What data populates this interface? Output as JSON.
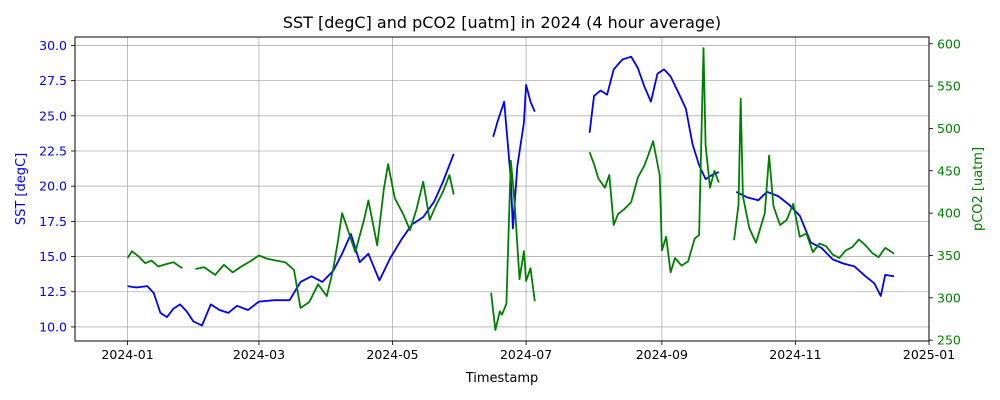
{
  "chart_data": {
    "type": "line",
    "title": "SST [degC] and pCO2 [uatm] in 2024 (4 hour average)",
    "xlabel": "Timestamp",
    "ylabel_left": "SST [degC]",
    "ylabel_right": "pCO2 [uatm]",
    "xlim": [
      "2023-12-08",
      "2025-01-01"
    ],
    "ylim_left": [
      9.0,
      30.6
    ],
    "ylim_right": [
      249,
      608
    ],
    "x_ticks": [
      "2024-01",
      "2024-03",
      "2024-05",
      "2024-07",
      "2024-09",
      "2024-11",
      "2025-01"
    ],
    "y_ticks_left": [
      "10.0",
      "12.5",
      "15.0",
      "17.5",
      "20.0",
      "22.5",
      "25.0",
      "27.5",
      "30.0"
    ],
    "y_ticks_right": [
      "250",
      "300",
      "350",
      "400",
      "450",
      "500",
      "550",
      "600"
    ],
    "grid": true,
    "colors": {
      "sst": "#0000ff",
      "pco2": "#008000",
      "left_axis": "#0000ff",
      "right_axis": "#008000"
    },
    "series": [
      {
        "key": "sst",
        "axis": "left",
        "segments": [
          [
            [
              "2024-01-01",
              12.9
            ],
            [
              "2024-01-05",
              12.8
            ],
            [
              "2024-01-10",
              12.9
            ],
            [
              "2024-01-13",
              12.4
            ],
            [
              "2024-01-16",
              11.0
            ],
            [
              "2024-01-19",
              10.7
            ],
            [
              "2024-01-22",
              11.3
            ],
            [
              "2024-01-25",
              11.6
            ],
            [
              "2024-01-28",
              11.1
            ],
            [
              "2024-01-31",
              10.4
            ],
            [
              "2024-02-04",
              10.1
            ],
            [
              "2024-02-08",
              11.6
            ],
            [
              "2024-02-12",
              11.2
            ],
            [
              "2024-02-16",
              11.0
            ],
            [
              "2024-02-20",
              11.5
            ],
            [
              "2024-02-25",
              11.2
            ],
            [
              "2024-03-01",
              11.8
            ],
            [
              "2024-03-08",
              11.9
            ],
            [
              "2024-03-15",
              11.9
            ],
            [
              "2024-03-20",
              13.2
            ],
            [
              "2024-03-25",
              13.6
            ],
            [
              "2024-03-30",
              13.2
            ],
            [
              "2024-04-04",
              14.0
            ],
            [
              "2024-04-08",
              15.2
            ],
            [
              "2024-04-12",
              16.6
            ],
            [
              "2024-04-16",
              14.6
            ],
            [
              "2024-04-20",
              15.2
            ],
            [
              "2024-04-25",
              13.3
            ],
            [
              "2024-04-30",
              14.9
            ],
            [
              "2024-05-05",
              16.2
            ],
            [
              "2024-05-10",
              17.3
            ],
            [
              "2024-05-15",
              17.8
            ],
            [
              "2024-05-20",
              18.9
            ],
            [
              "2024-05-24",
              20.3
            ],
            [
              "2024-05-27",
              21.5
            ],
            [
              "2024-05-29",
              22.3
            ]
          ],
          [
            [
              "2024-06-16",
              23.5
            ],
            [
              "2024-06-18",
              24.6
            ],
            [
              "2024-06-21",
              26.0
            ],
            [
              "2024-06-24",
              20.5
            ],
            [
              "2024-06-25",
              17.0
            ],
            [
              "2024-06-27",
              21.4
            ],
            [
              "2024-06-30",
              24.5
            ],
            [
              "2024-07-01",
              27.2
            ],
            [
              "2024-07-03",
              26.0
            ],
            [
              "2024-07-05",
              25.3
            ]
          ],
          [
            [
              "2024-07-30",
              23.8
            ],
            [
              "2024-08-01",
              26.4
            ],
            [
              "2024-08-04",
              26.8
            ],
            [
              "2024-08-07",
              26.5
            ],
            [
              "2024-08-10",
              28.3
            ],
            [
              "2024-08-14",
              29.0
            ],
            [
              "2024-08-18",
              29.2
            ],
            [
              "2024-08-21",
              28.4
            ],
            [
              "2024-08-24",
              27.1
            ],
            [
              "2024-08-27",
              26.0
            ],
            [
              "2024-08-30",
              28.0
            ],
            [
              "2024-09-02",
              28.3
            ],
            [
              "2024-09-05",
              27.8
            ],
            [
              "2024-09-09",
              26.5
            ],
            [
              "2024-09-12",
              25.5
            ],
            [
              "2024-09-15",
              23.0
            ],
            [
              "2024-09-18",
              21.5
            ],
            [
              "2024-09-21",
              20.5
            ],
            [
              "2024-09-24",
              20.8
            ],
            [
              "2024-09-27",
              21.0
            ]
          ],
          [
            [
              "2024-10-05",
              19.6
            ],
            [
              "2024-10-10",
              19.2
            ],
            [
              "2024-10-15",
              19.0
            ],
            [
              "2024-10-19",
              19.6
            ],
            [
              "2024-10-24",
              19.3
            ],
            [
              "2024-10-29",
              18.7
            ],
            [
              "2024-11-03",
              17.9
            ],
            [
              "2024-11-08",
              16.0
            ],
            [
              "2024-11-13",
              15.6
            ],
            [
              "2024-11-18",
              14.8
            ],
            [
              "2024-11-23",
              14.5
            ],
            [
              "2024-11-28",
              14.3
            ],
            [
              "2024-12-03",
              13.6
            ],
            [
              "2024-12-07",
              13.1
            ],
            [
              "2024-12-10",
              12.2
            ],
            [
              "2024-12-12",
              13.7
            ],
            [
              "2024-12-16",
              13.6
            ]
          ]
        ]
      },
      {
        "key": "pco2",
        "axis": "right",
        "segments": [
          [
            [
              "2024-01-01",
              347
            ],
            [
              "2024-01-03",
              355
            ],
            [
              "2024-01-06",
              349
            ],
            [
              "2024-01-09",
              341
            ],
            [
              "2024-01-12",
              344
            ],
            [
              "2024-01-15",
              337
            ],
            [
              "2024-01-19",
              340
            ],
            [
              "2024-01-22",
              342
            ],
            [
              "2024-01-26",
              335
            ]
          ],
          [
            [
              "2024-02-01",
              334
            ],
            [
              "2024-02-05",
              336
            ],
            [
              "2024-02-10",
              327
            ],
            [
              "2024-02-14",
              339
            ],
            [
              "2024-02-18",
              330
            ],
            [
              "2024-02-22",
              337
            ],
            [
              "2024-02-26",
              343
            ],
            [
              "2024-03-01",
              350
            ],
            [
              "2024-03-05",
              346
            ],
            [
              "2024-03-09",
              344
            ],
            [
              "2024-03-13",
              342
            ],
            [
              "2024-03-17",
              333
            ],
            [
              "2024-03-20",
              288
            ],
            [
              "2024-03-24",
              295
            ],
            [
              "2024-03-28",
              316
            ],
            [
              "2024-04-01",
              302
            ],
            [
              "2024-04-04",
              335
            ],
            [
              "2024-04-06",
              366
            ],
            [
              "2024-04-08",
              400
            ],
            [
              "2024-04-10",
              385
            ],
            [
              "2024-04-14",
              354
            ],
            [
              "2024-04-18",
              392
            ],
            [
              "2024-04-20",
              415
            ],
            [
              "2024-04-24",
              362
            ],
            [
              "2024-04-27",
              428
            ],
            [
              "2024-04-29",
              458
            ],
            [
              "2024-05-02",
              418
            ],
            [
              "2024-05-06",
              398
            ],
            [
              "2024-05-09",
              380
            ],
            [
              "2024-05-12",
              405
            ],
            [
              "2024-05-15",
              437
            ],
            [
              "2024-05-18",
              392
            ],
            [
              "2024-05-21",
              410
            ],
            [
              "2024-05-24",
              425
            ],
            [
              "2024-05-27",
              445
            ],
            [
              "2024-05-29",
              422
            ]
          ],
          [
            [
              "2024-06-15",
              306
            ],
            [
              "2024-06-16",
              284
            ],
            [
              "2024-06-17",
              262
            ],
            [
              "2024-06-19",
              284
            ],
            [
              "2024-06-20",
              280
            ],
            [
              "2024-06-22",
              293
            ],
            [
              "2024-06-24",
              462
            ],
            [
              "2024-06-25",
              436
            ],
            [
              "2024-06-26",
              404
            ],
            [
              "2024-06-28",
              322
            ],
            [
              "2024-06-30",
              355
            ],
            [
              "2024-07-01",
              320
            ],
            [
              "2024-07-03",
              335
            ],
            [
              "2024-07-05",
              296
            ]
          ],
          [
            [
              "2024-07-30",
              472
            ],
            [
              "2024-08-01",
              458
            ],
            [
              "2024-08-03",
              441
            ],
            [
              "2024-08-06",
              430
            ],
            [
              "2024-08-08",
              445
            ],
            [
              "2024-08-10",
              386
            ],
            [
              "2024-08-12",
              399
            ],
            [
              "2024-08-15",
              405
            ],
            [
              "2024-08-18",
              413
            ],
            [
              "2024-08-21",
              442
            ],
            [
              "2024-08-24",
              456
            ],
            [
              "2024-08-26",
              470
            ],
            [
              "2024-08-28",
              485
            ],
            [
              "2024-08-31",
              445
            ],
            [
              "2024-09-01",
              356
            ],
            [
              "2024-09-03",
              372
            ],
            [
              "2024-09-05",
              330
            ],
            [
              "2024-09-07",
              347
            ],
            [
              "2024-09-10",
              338
            ],
            [
              "2024-09-13",
              343
            ],
            [
              "2024-09-16",
              370
            ],
            [
              "2024-09-18",
              374
            ],
            [
              "2024-09-19",
              485
            ],
            [
              "2024-09-20",
              595
            ],
            [
              "2024-09-21",
              480
            ],
            [
              "2024-09-23",
              430
            ],
            [
              "2024-09-25",
              450
            ],
            [
              "2024-09-27",
              436
            ]
          ],
          [
            [
              "2024-10-04",
              368
            ],
            [
              "2024-10-06",
              410
            ],
            [
              "2024-10-07",
              535
            ],
            [
              "2024-10-08",
              420
            ],
            [
              "2024-10-11",
              382
            ],
            [
              "2024-10-14",
              365
            ],
            [
              "2024-10-18",
              400
            ],
            [
              "2024-10-20",
              468
            ],
            [
              "2024-10-22",
              408
            ],
            [
              "2024-10-25",
              386
            ],
            [
              "2024-10-28",
              392
            ],
            [
              "2024-10-31",
              411
            ],
            [
              "2024-11-03",
              372
            ],
            [
              "2024-11-06",
              376
            ],
            [
              "2024-11-09",
              354
            ],
            [
              "2024-11-12",
              364
            ],
            [
              "2024-11-15",
              361
            ],
            [
              "2024-11-18",
              351
            ],
            [
              "2024-11-21",
              347
            ],
            [
              "2024-11-24",
              356
            ],
            [
              "2024-11-27",
              360
            ],
            [
              "2024-11-30",
              369
            ],
            [
              "2024-12-03",
              362
            ],
            [
              "2024-12-06",
              353
            ],
            [
              "2024-12-09",
              348
            ],
            [
              "2024-12-12",
              359
            ],
            [
              "2024-12-15",
              354
            ],
            [
              "2024-12-16",
              352
            ]
          ]
        ]
      }
    ]
  }
}
